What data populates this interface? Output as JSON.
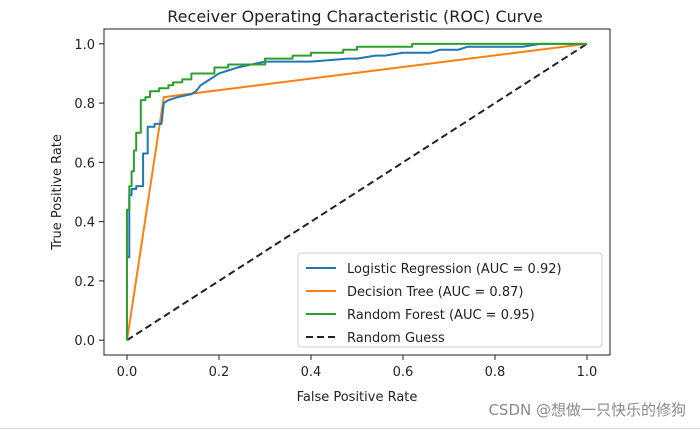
{
  "chart_data": {
    "type": "line",
    "title": "Receiver Operating Characteristic (ROC) Curve",
    "xlabel": "False Positive Rate",
    "ylabel": "True Positive Rate",
    "xlim": [
      -0.05,
      1.05
    ],
    "ylim": [
      -0.05,
      1.05
    ],
    "xticks": [
      0.0,
      0.2,
      0.4,
      0.6,
      0.8,
      1.0
    ],
    "yticks": [
      0.0,
      0.2,
      0.4,
      0.6,
      0.8,
      1.0
    ],
    "xtick_labels": [
      "0.0",
      "0.2",
      "0.4",
      "0.6",
      "0.8",
      "1.0"
    ],
    "ytick_labels": [
      "0.0",
      "0.2",
      "0.4",
      "0.6",
      "0.8",
      "1.0"
    ],
    "grid": false,
    "legend_position": "bottom-right",
    "series": [
      {
        "name": "Logistic Regression (AUC = 0.92)",
        "color": "#1f77b4",
        "style": "solid",
        "x": [
          0.0,
          0.0,
          0.005,
          0.005,
          0.01,
          0.01,
          0.02,
          0.02,
          0.035,
          0.035,
          0.045,
          0.045,
          0.06,
          0.06,
          0.075,
          0.08,
          0.09,
          0.11,
          0.14,
          0.15,
          0.16,
          0.17,
          0.18,
          0.2,
          0.22,
          0.24,
          0.27,
          0.3,
          0.34,
          0.36,
          0.4,
          0.48,
          0.5,
          0.54,
          0.56,
          0.6,
          0.66,
          0.68,
          0.72,
          0.74,
          0.8,
          0.86,
          0.9,
          0.96,
          1.0
        ],
        "y": [
          0.0,
          0.28,
          0.28,
          0.49,
          0.49,
          0.51,
          0.51,
          0.52,
          0.52,
          0.63,
          0.63,
          0.72,
          0.72,
          0.73,
          0.73,
          0.8,
          0.81,
          0.82,
          0.83,
          0.84,
          0.86,
          0.87,
          0.88,
          0.9,
          0.91,
          0.92,
          0.93,
          0.94,
          0.94,
          0.94,
          0.94,
          0.95,
          0.95,
          0.96,
          0.96,
          0.97,
          0.97,
          0.98,
          0.98,
          0.99,
          0.99,
          0.99,
          1.0,
          1.0,
          1.0
        ]
      },
      {
        "name": "Decision Tree (AUC = 0.87)",
        "color": "#ff7f0e",
        "style": "solid",
        "x": [
          0.0,
          0.08,
          1.0
        ],
        "y": [
          0.0,
          0.82,
          1.0
        ]
      },
      {
        "name": "Random Forest (AUC = 0.95)",
        "color": "#2ca02c",
        "style": "solid",
        "x": [
          0.0,
          0.0,
          0.005,
          0.005,
          0.01,
          0.01,
          0.015,
          0.015,
          0.02,
          0.02,
          0.03,
          0.03,
          0.04,
          0.04,
          0.05,
          0.05,
          0.07,
          0.07,
          0.09,
          0.09,
          0.1,
          0.1,
          0.12,
          0.12,
          0.14,
          0.14,
          0.19,
          0.19,
          0.22,
          0.22,
          0.3,
          0.3,
          0.36,
          0.36,
          0.4,
          0.4,
          0.47,
          0.47,
          0.5,
          0.5,
          0.55,
          0.55,
          0.62,
          0.62,
          0.68,
          0.68,
          0.74,
          0.74,
          0.8,
          0.8,
          0.85,
          1.0
        ],
        "y": [
          0.0,
          0.44,
          0.44,
          0.52,
          0.52,
          0.57,
          0.57,
          0.64,
          0.64,
          0.7,
          0.7,
          0.81,
          0.81,
          0.82,
          0.82,
          0.84,
          0.84,
          0.85,
          0.85,
          0.86,
          0.86,
          0.87,
          0.87,
          0.88,
          0.88,
          0.9,
          0.9,
          0.92,
          0.92,
          0.93,
          0.93,
          0.95,
          0.95,
          0.96,
          0.96,
          0.97,
          0.97,
          0.98,
          0.98,
          0.99,
          0.99,
          0.99,
          0.99,
          1.0,
          1.0,
          1.0,
          1.0,
          1.0,
          1.0,
          1.0,
          1.0,
          1.0
        ]
      },
      {
        "name": "Random Guess",
        "color": "#222222",
        "style": "dashed",
        "x": [
          0.0,
          1.0
        ],
        "y": [
          0.0,
          1.0
        ]
      }
    ]
  },
  "watermark": "CSDN @想做一只快乐的修狗"
}
